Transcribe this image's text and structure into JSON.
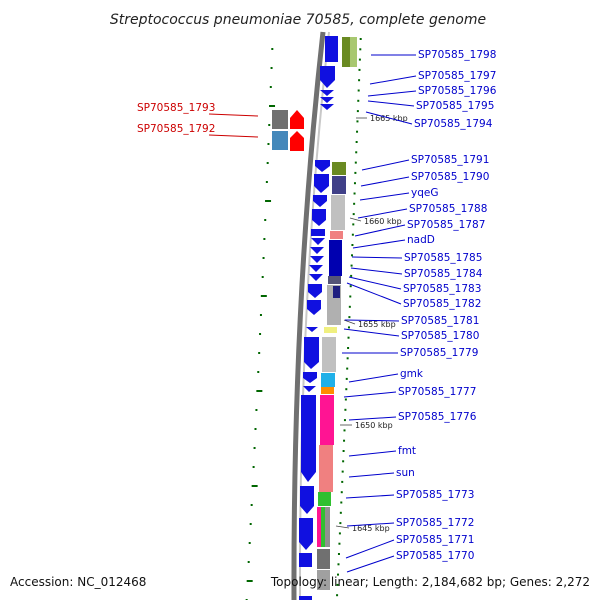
{
  "title": "Streptococcus pneumoniae 70585, complete genome",
  "footer": {
    "accession": "Accession: NC_012468",
    "summary": "Topology: linear; Length: 2,184,682 bp; Genes: 2,272"
  },
  "colors": {
    "gene_label": "#0000cc",
    "highlight_label": "#cc0000",
    "forward_gene": "#1010e0",
    "highlight_gene": "#ff0000",
    "tick": "#006600",
    "backbone": "#808080"
  },
  "kbp_markers": [
    "1665 kbp",
    "1660 kbp",
    "1655 kbp",
    "1650 kbp",
    "1645 kbp"
  ],
  "genes_right": [
    "SP70585_1798",
    "SP70585_1797",
    "SP70585_1796",
    "SP70585_1795",
    "SP70585_1794",
    "SP70585_1791",
    "SP70585_1790",
    "yqeG",
    "SP70585_1788",
    "SP70585_1787",
    "nadD",
    "SP70585_1785",
    "SP70585_1784",
    "SP70585_1783",
    "SP70585_1782",
    "SP70585_1781",
    "SP70585_1780",
    "SP70585_1779",
    "gmk",
    "SP70585_1777",
    "SP70585_1776",
    "fmt",
    "sun",
    "SP70585_1773",
    "SP70585_1772",
    "SP70585_1771",
    "SP70585_1770"
  ],
  "genes_left": [
    "SP70585_1793",
    "SP70585_1792"
  ]
}
